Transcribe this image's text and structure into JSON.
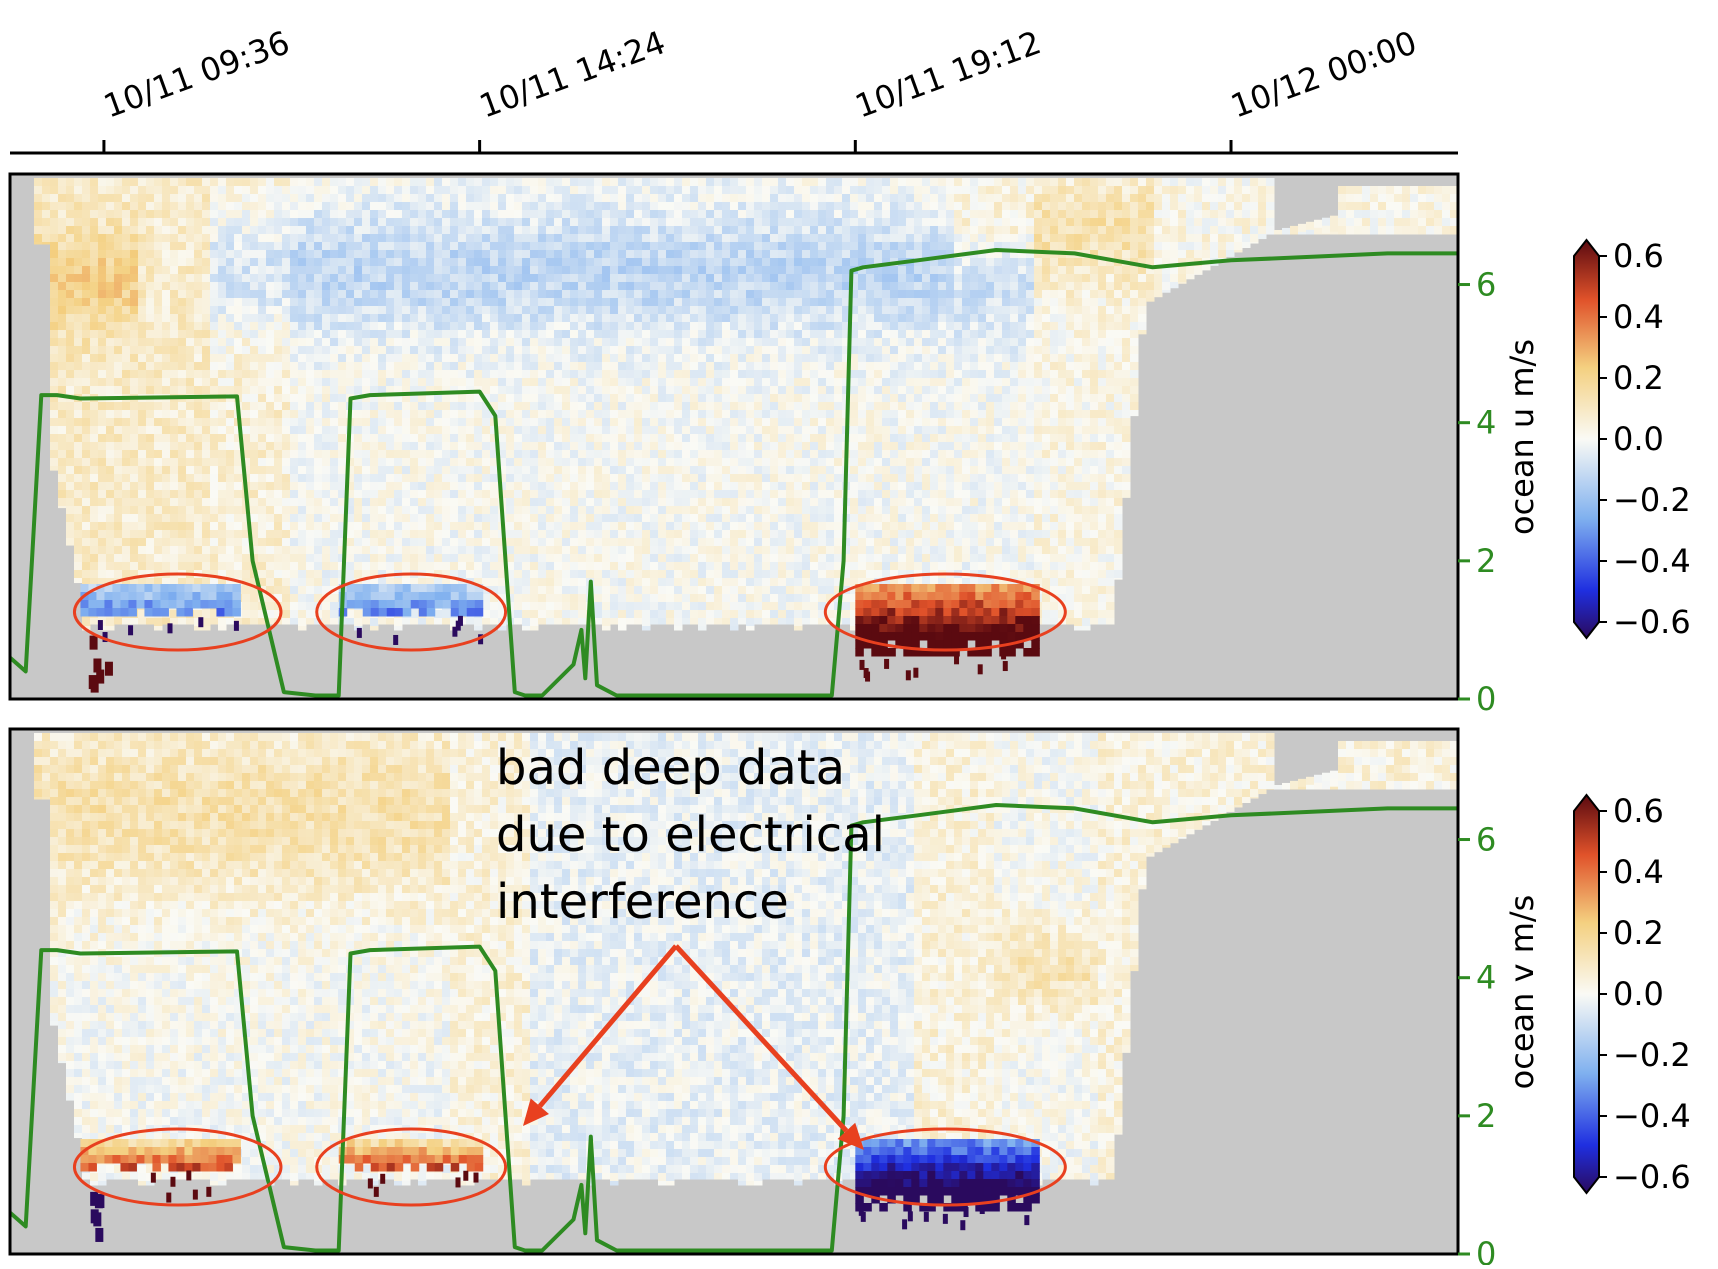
{
  "chart_data": {
    "type": "heatmap",
    "time_axis": {
      "ticks": [
        "10/11 09:36",
        "10/11 14:24",
        "10/11 19:12",
        "10/12 00:00"
      ],
      "tick_hours": [
        9.6,
        14.4,
        19.2,
        24.0
      ],
      "range_hours": [
        8.4,
        26.9
      ]
    },
    "panels": [
      {
        "id": "u",
        "colorbar_label": "ocean u m/s",
        "colorbar_ticks": [
          "0.6",
          "0.4",
          "0.2",
          "0.0",
          "−0.2",
          "−0.4",
          "−0.6"
        ],
        "clim": [
          -0.6,
          0.6
        ],
        "right_axis_ticks": [
          "0",
          "2",
          "4",
          "6"
        ],
        "right_axis_range": [
          0,
          7.6
        ],
        "bad_data_sign": 1,
        "bad_data_anomaly_sign": -1
      },
      {
        "id": "v",
        "colorbar_label": "ocean v m/s",
        "colorbar_ticks": [
          "0.6",
          "0.4",
          "0.2",
          "0.0",
          "−0.2",
          "−0.4",
          "−0.6"
        ],
        "clim": [
          -0.6,
          0.6
        ],
        "right_axis_ticks": [
          "0",
          "2",
          "4",
          "6"
        ],
        "right_axis_range": [
          0,
          7.6
        ],
        "bad_data_sign": -1,
        "bad_data_anomaly_sign": 1
      }
    ],
    "line_series": {
      "color": "#2e8b22",
      "time_hours": [
        8.4,
        8.6,
        8.8,
        9.0,
        9.3,
        11.3,
        11.5,
        11.9,
        12.3,
        12.6,
        12.75,
        13.0,
        14.4,
        14.6,
        14.85,
        14.98,
        15.2,
        15.6,
        15.7,
        15.75,
        15.82,
        15.9,
        16.15,
        16.45,
        16.6,
        18.9,
        19.05,
        19.15,
        19.3,
        20.0,
        21.0,
        22.0,
        23.0,
        24.0,
        25.0,
        26.0,
        26.9
      ],
      "values": [
        0.6,
        0.4,
        4.4,
        4.4,
        4.35,
        4.38,
        2.0,
        0.1,
        0.05,
        0.05,
        4.35,
        4.4,
        4.45,
        4.1,
        0.1,
        0.05,
        0.05,
        0.5,
        1.0,
        0.3,
        1.7,
        0.2,
        0.05,
        0.05,
        0.05,
        0.05,
        2.0,
        6.2,
        6.25,
        6.35,
        6.5,
        6.45,
        6.25,
        6.35,
        6.4,
        6.45,
        6.45
      ]
    },
    "bad_regions_hours": [
      [
        9.3,
        11.3
      ],
      [
        12.6,
        14.4
      ],
      [
        19.2,
        21.5
      ]
    ],
    "annotation": {
      "text_lines": [
        "bad deep data",
        "due to electrical",
        "interference"
      ],
      "color": "#e8401f"
    }
  }
}
